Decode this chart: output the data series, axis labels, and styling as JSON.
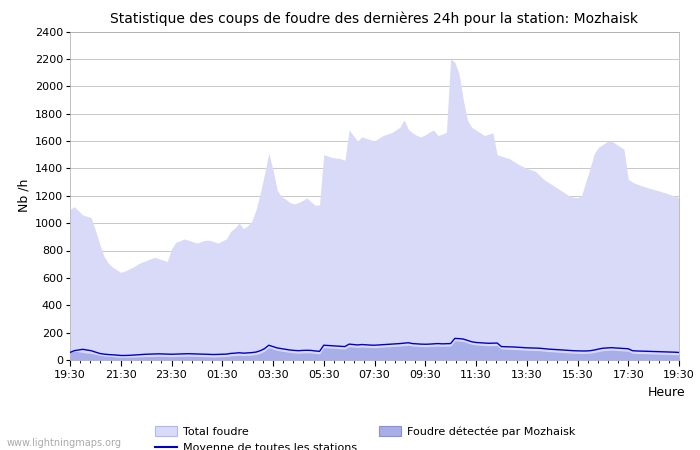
{
  "title": "Statistique des coups de foudre des dernières 24h pour la station: Mozhaisk",
  "xlabel": "Heure",
  "ylabel": "Nb /h",
  "ylim": [
    0,
    2400
  ],
  "yticks": [
    0,
    200,
    400,
    600,
    800,
    1000,
    1200,
    1400,
    1600,
    1800,
    2000,
    2200,
    2400
  ],
  "xtick_labels": [
    "19:30",
    "21:30",
    "23:30",
    "01:30",
    "03:30",
    "05:30",
    "07:30",
    "09:30",
    "11:30",
    "13:30",
    "15:30",
    "17:30",
    "19:30"
  ],
  "watermark": "www.lightningmaps.org",
  "legend_total": "Total foudre",
  "legend_moyenne": "Moyenne de toutes les stations",
  "legend_local": "Foudre détectée par Mozhaisk",
  "fill_total_color": "#d8daf8",
  "fill_local_color": "#a8aee8",
  "line_moyenne_color": "#0000cc",
  "background_color": "#ffffff",
  "grid_color": "#c8c8c8",
  "total_foudre": [
    1100,
    1120,
    1090,
    1060,
    1050,
    1040,
    950,
    850,
    760,
    710,
    680,
    660,
    640,
    650,
    665,
    680,
    700,
    715,
    725,
    740,
    750,
    740,
    730,
    720,
    810,
    860,
    870,
    885,
    875,
    865,
    855,
    865,
    875,
    875,
    865,
    855,
    870,
    885,
    940,
    965,
    1000,
    960,
    980,
    1015,
    1100,
    1220,
    1360,
    1510,
    1390,
    1240,
    1195,
    1175,
    1150,
    1140,
    1150,
    1165,
    1185,
    1155,
    1130,
    1135,
    1500,
    1490,
    1480,
    1475,
    1470,
    1460,
    1680,
    1640,
    1600,
    1630,
    1620,
    1610,
    1600,
    1620,
    1640,
    1650,
    1660,
    1680,
    1700,
    1755,
    1685,
    1660,
    1640,
    1630,
    1645,
    1665,
    1680,
    1640,
    1650,
    1665,
    2200,
    2175,
    2090,
    1900,
    1750,
    1700,
    1680,
    1660,
    1640,
    1650,
    1660,
    1500,
    1490,
    1480,
    1470,
    1450,
    1430,
    1415,
    1400,
    1390,
    1380,
    1350,
    1320,
    1300,
    1280,
    1260,
    1240,
    1220,
    1200,
    1190,
    1185,
    1205,
    1305,
    1405,
    1510,
    1555,
    1575,
    1595,
    1600,
    1580,
    1560,
    1540,
    1320,
    1300,
    1285,
    1275,
    1265,
    1255,
    1245,
    1238,
    1228,
    1218,
    1208,
    1198,
    1185
  ],
  "local_foudre": [
    55,
    65,
    60,
    55,
    50,
    48,
    42,
    35,
    30,
    28,
    25,
    22,
    20,
    20,
    21,
    22,
    23,
    24,
    25,
    25,
    26,
    27,
    26,
    25,
    24,
    25,
    26,
    27,
    28,
    27,
    26,
    25,
    24,
    23,
    22,
    23,
    24,
    25,
    30,
    32,
    35,
    32,
    34,
    36,
    40,
    50,
    65,
    90,
    80,
    70,
    65,
    60,
    55,
    52,
    50,
    52,
    53,
    52,
    48,
    45,
    90,
    88,
    86,
    84,
    82,
    80,
    98,
    95,
    92,
    95,
    93,
    91,
    90,
    92,
    94,
    96,
    98,
    100,
    102,
    105,
    108,
    102,
    100,
    98,
    97,
    98,
    100,
    102,
    100,
    101,
    102,
    140,
    138,
    135,
    125,
    115,
    110,
    108,
    106,
    104,
    105,
    106,
    80,
    79,
    78,
    77,
    75,
    73,
    71,
    70,
    69,
    68,
    65,
    62,
    60,
    58,
    56,
    54,
    52,
    50,
    49,
    48,
    48,
    50,
    55,
    62,
    68,
    70,
    72,
    70,
    68,
    66,
    64,
    50,
    48,
    47,
    46,
    45,
    44,
    43,
    42,
    41,
    40,
    39,
    37
  ],
  "moyenne_stations": [
    55,
    68,
    73,
    78,
    73,
    68,
    58,
    48,
    43,
    40,
    38,
    36,
    33,
    33,
    34,
    36,
    38,
    40,
    42,
    43,
    44,
    45,
    44,
    43,
    42,
    43,
    44,
    45,
    46,
    45,
    44,
    43,
    42,
    41,
    40,
    41,
    42,
    43,
    48,
    50,
    53,
    50,
    52,
    54,
    58,
    68,
    83,
    108,
    98,
    88,
    83,
    78,
    73,
    70,
    68,
    70,
    71,
    70,
    66,
    63,
    108,
    106,
    104,
    102,
    100,
    98,
    116,
    113,
    110,
    113,
    111,
    109,
    108,
    110,
    112,
    114,
    116,
    118,
    120,
    123,
    126,
    120,
    118,
    116,
    115,
    116,
    118,
    120,
    118,
    119,
    120,
    158,
    156,
    153,
    143,
    133,
    128,
    126,
    124,
    122,
    123,
    124,
    98,
    97,
    96,
    95,
    93,
    91,
    89,
    88,
    87,
    86,
    83,
    80,
    78,
    76,
    74,
    72,
    70,
    68,
    67,
    66,
    66,
    68,
    73,
    80,
    86,
    88,
    90,
    88,
    86,
    84,
    82,
    68,
    66,
    65,
    64,
    63,
    62,
    61,
    60,
    59,
    58,
    57,
    55
  ]
}
